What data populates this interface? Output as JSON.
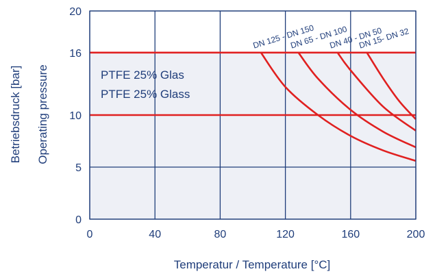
{
  "chart_data": {
    "type": "line",
    "title": "",
    "xlabel": "Temperatur / Temperature  [°C]",
    "ylabel_de": "Betriebsdruck [bar]",
    "ylabel_en": "Operating pressure",
    "xlim": [
      0,
      200
    ],
    "ylim": [
      0,
      20
    ],
    "xticks": [
      "0",
      "40",
      "80",
      "120",
      "160",
      "200"
    ],
    "yticks": [
      "0",
      "5",
      "10",
      "16",
      "20"
    ],
    "grid": true,
    "material_label": [
      "PTFE 25% Glas",
      "PTFE 25% Glass"
    ],
    "fill_color": "#eef0f6",
    "line_color": "#e02020",
    "grid_color": "#1f3d7a",
    "reference_lines": [
      16,
      10
    ],
    "series": [
      {
        "name": "DN 125 - DN 150",
        "x": [
          105,
          120,
          140,
          160,
          180,
          200
        ],
        "y": [
          16,
          12.7,
          10,
          8,
          6.6,
          5.6
        ]
      },
      {
        "name": "DN 65 - DN 100",
        "x": [
          128,
          140,
          160,
          180,
          200
        ],
        "y": [
          16,
          13.5,
          10.5,
          8.4,
          6.9
        ]
      },
      {
        "name": "DN 40 - DN 50",
        "x": [
          152,
          160,
          180,
          200
        ],
        "y": [
          16,
          14.3,
          10.8,
          8.5
        ]
      },
      {
        "name": "DN 15- DN 32",
        "x": [
          170,
          180,
          190,
          200
        ],
        "y": [
          16,
          13.5,
          11.3,
          9.6
        ]
      }
    ]
  }
}
